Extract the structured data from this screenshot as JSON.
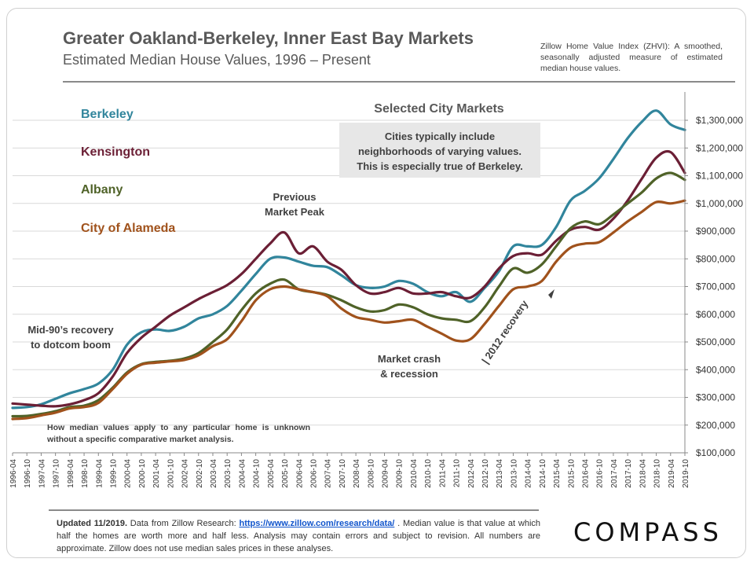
{
  "header": {
    "title": "Greater Oakland-Berkeley, Inner East Bay Markets",
    "subtitle": "Estimated Median House Values, 1996 – Present",
    "note": "Zillow Home Value Index (ZHVI): A smoothed, seasonally adjusted measure of estimated median house values."
  },
  "annotations": {
    "heading": "Selected City Markets",
    "box_line1": "Cities typically include",
    "box_line2": "neighborhoods of varying values.",
    "box_line3": "This is especially true of Berkeley.",
    "peak_line1": "Previous",
    "peak_line2": "Market Peak",
    "mid90_line1": "Mid-90’s recovery",
    "mid90_line2": "to dotcom boom",
    "crash_line1": "Market crash",
    "crash_line2": "& recession",
    "recovery": "2012 recovery",
    "bottom_note": "How median values apply to any particular home is unknown without a specific comparative market analysis."
  },
  "footer": {
    "updated": "Updated 11/2019.",
    "text_a": " Data from Zillow Research: ",
    "link": "https://www.zillow.com/research/data/",
    "text_b": " . Median value is that value at which half the homes are worth more and half less. Analysis may contain errors and subject to revision. All numbers are approximate. Zillow does not use median sales prices in these analyses.",
    "logo": "COMPASS"
  },
  "colors": {
    "berkeley": "#31859c",
    "kensington": "#6b1f35",
    "albany": "#4f6228",
    "alameda": "#a0521c",
    "grid": "#d9d9d9",
    "axis_text": "#333333"
  },
  "chart_data": {
    "type": "line",
    "ylim": [
      100000,
      1350000
    ],
    "y_ticks": [
      100000,
      200000,
      300000,
      400000,
      500000,
      600000,
      700000,
      800000,
      900000,
      1000000,
      1100000,
      1200000,
      1300000
    ],
    "y_tick_labels": [
      "$100,000",
      "$200,000",
      "$300,000",
      "$400,000",
      "$500,000",
      "$600,000",
      "$700,000",
      "$800,000",
      "$900,000",
      "$1,000,000",
      "$1,100,000",
      "$1,200,000",
      "$1,300,000"
    ],
    "x_tick_labels": [
      "1996-04",
      "1996-10",
      "1997-04",
      "1997-10",
      "1998-04",
      "1998-10",
      "1999-04",
      "1999-10",
      "2000-04",
      "2000-10",
      "2001-04",
      "2001-10",
      "2002-04",
      "2002-10",
      "2003-04",
      "2003-10",
      "2004-04",
      "2004-10",
      "2005-04",
      "2005-10",
      "2006-04",
      "2006-10",
      "2007-04",
      "2007-10",
      "2008-04",
      "2008-10",
      "2009-04",
      "2009-10",
      "2010-04",
      "2010-10",
      "2011-04",
      "2011-10",
      "2012-04",
      "2012-10",
      "2013-04",
      "2013-10",
      "2014-04",
      "2014-10",
      "2015-04",
      "2015-10",
      "2016-04",
      "2016-10",
      "2017-04",
      "2017-10",
      "2018-04",
      "2018-10",
      "2019-04",
      "2019-10"
    ],
    "x": [
      "1996-04",
      "1996-10",
      "1997-04",
      "1997-10",
      "1998-04",
      "1998-10",
      "1999-04",
      "1999-10",
      "2000-04",
      "2000-10",
      "2001-04",
      "2001-10",
      "2002-04",
      "2002-10",
      "2003-04",
      "2003-10",
      "2004-04",
      "2004-10",
      "2005-04",
      "2005-10",
      "2006-04",
      "2006-10",
      "2007-04",
      "2007-10",
      "2008-04",
      "2008-10",
      "2009-04",
      "2009-10",
      "2010-04",
      "2010-10",
      "2011-04",
      "2011-10",
      "2012-04",
      "2012-10",
      "2013-04",
      "2013-10",
      "2014-04",
      "2014-10",
      "2015-04",
      "2015-10",
      "2016-04",
      "2016-10",
      "2017-04",
      "2017-10",
      "2018-04",
      "2018-10",
      "2019-04",
      "2019-10"
    ],
    "series": [
      {
        "name": "Berkeley",
        "values": [
          262000,
          265000,
          275000,
          295000,
          315000,
          330000,
          350000,
          400000,
          490000,
          535000,
          545000,
          540000,
          555000,
          585000,
          600000,
          630000,
          685000,
          745000,
          800000,
          805000,
          790000,
          775000,
          770000,
          740000,
          705000,
          695000,
          700000,
          720000,
          710000,
          680000,
          665000,
          680000,
          645000,
          695000,
          755000,
          845000,
          845000,
          850000,
          915000,
          1010000,
          1045000,
          1090000,
          1160000,
          1235000,
          1295000,
          1335000,
          1285000,
          1265000
        ]
      },
      {
        "name": "Kensington",
        "values": [
          278000,
          274000,
          270000,
          268000,
          275000,
          290000,
          315000,
          375000,
          460000,
          515000,
          555000,
          595000,
          625000,
          655000,
          680000,
          705000,
          745000,
          800000,
          855000,
          895000,
          820000,
          845000,
          790000,
          760000,
          705000,
          675000,
          680000,
          695000,
          675000,
          675000,
          680000,
          665000,
          660000,
          700000,
          765000,
          810000,
          820000,
          815000,
          865000,
          905000,
          915000,
          905000,
          945000,
          1010000,
          1090000,
          1165000,
          1185000,
          1110000
        ]
      },
      {
        "name": "Albany",
        "values": [
          232000,
          233000,
          240000,
          250000,
          265000,
          270000,
          290000,
          335000,
          390000,
          420000,
          428000,
          432000,
          440000,
          460000,
          500000,
          545000,
          615000,
          675000,
          710000,
          725000,
          690000,
          680000,
          670000,
          650000,
          625000,
          610000,
          615000,
          635000,
          625000,
          600000,
          585000,
          580000,
          575000,
          625000,
          700000,
          765000,
          750000,
          780000,
          845000,
          910000,
          935000,
          925000,
          960000,
          1000000,
          1040000,
          1090000,
          1110000,
          1085000
        ]
      },
      {
        "name": "City of Alameda",
        "values": [
          222000,
          225000,
          235000,
          245000,
          260000,
          265000,
          280000,
          330000,
          385000,
          418000,
          425000,
          430000,
          435000,
          452000,
          485000,
          510000,
          575000,
          650000,
          690000,
          700000,
          690000,
          680000,
          665000,
          620000,
          590000,
          580000,
          570000,
          575000,
          580000,
          555000,
          530000,
          505000,
          510000,
          565000,
          630000,
          690000,
          700000,
          720000,
          790000,
          840000,
          855000,
          860000,
          895000,
          935000,
          970000,
          1005000,
          1000000,
          1010000
        ]
      }
    ]
  }
}
